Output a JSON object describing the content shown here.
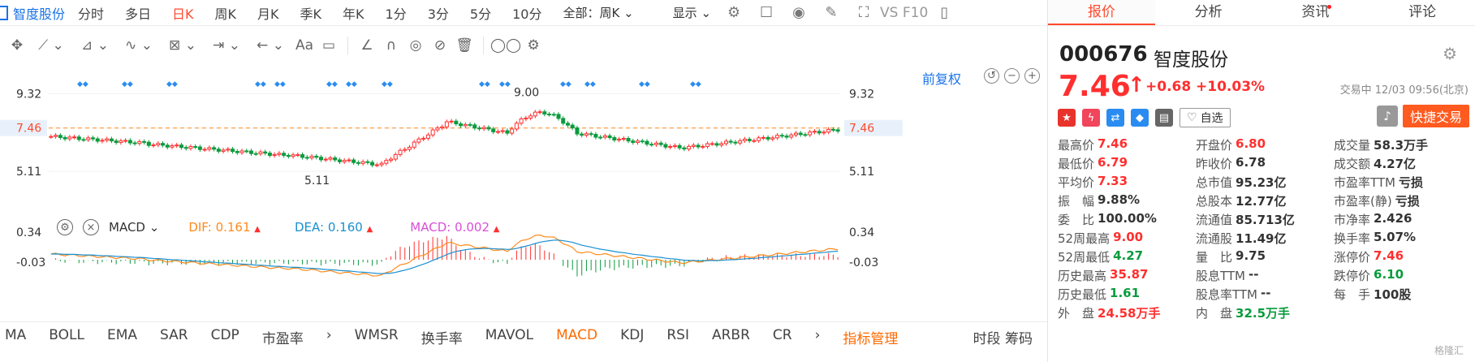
{
  "header": {
    "stock_label": "智度股份",
    "periods": [
      "分时",
      "多日",
      "日K",
      "周K",
      "月K",
      "季K",
      "年K",
      "1分",
      "3分",
      "5分",
      "10分"
    ],
    "active_period": "日K",
    "mode": "全部：周K",
    "display": "显示",
    "vs_label": "VS F10"
  },
  "toolbar": {
    "text_tool": "Aa"
  },
  "chart": {
    "restore_right": "前复权",
    "price_ticks": [
      "9.32",
      "7.46",
      "5.11"
    ],
    "current_price": "7.46",
    "max_label": "9.00",
    "min_label": "5.11",
    "macd_ticks": [
      "0.34",
      "-0.03"
    ]
  },
  "indicator_bar": {
    "name": "MACD",
    "dif_label": "DIF: 0.161",
    "dea_label": "DEA: 0.160",
    "macd_label": "MACD: 0.002"
  },
  "bottom_indicators": [
    "MA",
    "BOLL",
    "EMA",
    "SAR",
    "CDP",
    "市盈率",
    "WMSR",
    "换手率",
    "MAVOL",
    "MACD",
    "KDJ",
    "RSI",
    "ARBR",
    "CR"
  ],
  "bottom_active": "MACD",
  "bottom_more": "›",
  "bottom_more_left": "›",
  "indicator_manage": "指标管理",
  "bottom_right": "时段 筹码",
  "colors": {
    "up": "#ff2f2f",
    "down": "#0a9b3d",
    "accent": "#1a73e8",
    "orange": "#ff6a00"
  },
  "tabs": [
    "报价",
    "分析",
    "资讯",
    "评论"
  ],
  "active_tab": "报价",
  "stock": {
    "code": "000676",
    "name": "智度股份",
    "price": "7.46",
    "arrow": "↑",
    "change": "+0.68",
    "change_pct": "+10.03%",
    "status": "交易中 12/03 09:56(北京)",
    "watch_label": "自选",
    "trade_label": "快捷交易"
  },
  "quote_rows": [
    [
      [
        "最高价",
        "7.46",
        "red"
      ],
      [
        "开盘价",
        "6.80",
        "red"
      ],
      [
        "成交量",
        "58.3万手",
        ""
      ]
    ],
    [
      [
        "最低价",
        "6.79",
        "red"
      ],
      [
        "昨收价",
        "6.78",
        ""
      ],
      [
        "成交额",
        "4.27亿",
        ""
      ]
    ],
    [
      [
        "平均价",
        "7.33",
        "red"
      ],
      [
        "总市值",
        "95.23亿",
        ""
      ],
      [
        "市盈率TTM",
        "亏损",
        ""
      ]
    ],
    [
      [
        "振　幅",
        "9.88%",
        ""
      ],
      [
        "总股本",
        "12.77亿",
        ""
      ],
      [
        "市盈率(静)",
        "亏损",
        ""
      ]
    ],
    [
      [
        "委　比",
        "100.00%",
        ""
      ],
      [
        "流通值",
        "85.713亿",
        ""
      ],
      [
        "市净率",
        "2.426",
        ""
      ]
    ],
    [
      [
        "52周最高",
        "9.00",
        "red"
      ],
      [
        "流通股",
        "11.49亿",
        ""
      ],
      [
        "换手率",
        "5.07%",
        ""
      ]
    ],
    [
      [
        "52周最低",
        "4.27",
        "green"
      ],
      [
        "量　比",
        "9.75",
        ""
      ],
      [
        "涨停价",
        "7.46",
        "red"
      ]
    ],
    [
      [
        "历史最高",
        "35.87",
        "red"
      ],
      [
        "股息TTM",
        "--",
        ""
      ],
      [
        "跌停价",
        "6.10",
        "green"
      ]
    ],
    [
      [
        "历史最低",
        "1.61",
        "green"
      ],
      [
        "股息率TTM",
        "--",
        ""
      ],
      [
        "每　手",
        "100股",
        ""
      ]
    ],
    [
      [
        "外　盘",
        "24.58万手",
        "red"
      ],
      [
        "内　盘",
        "32.5万手",
        "green"
      ],
      [
        "",
        "",
        ""
      ]
    ]
  ],
  "watermark": "格隆汇"
}
